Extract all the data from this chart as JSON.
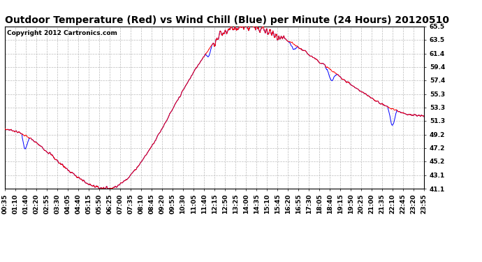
{
  "title": "Outdoor Temperature (Red) vs Wind Chill (Blue) per Minute (24 Hours) 20120510",
  "copyright": "Copyright 2012 Cartronics.com",
  "ylim": [
    41.1,
    65.5
  ],
  "yticks": [
    41.1,
    43.1,
    45.2,
    47.2,
    49.2,
    51.3,
    53.3,
    55.3,
    57.4,
    59.4,
    61.4,
    63.5,
    65.5
  ],
  "xtick_labels": [
    "00:35",
    "01:10",
    "01:40",
    "02:20",
    "02:55",
    "03:30",
    "04:05",
    "04:40",
    "05:15",
    "05:50",
    "06:25",
    "07:00",
    "07:35",
    "08:10",
    "08:45",
    "09:20",
    "09:55",
    "10:30",
    "11:05",
    "11:40",
    "12:15",
    "12:50",
    "13:25",
    "14:00",
    "14:35",
    "15:10",
    "15:45",
    "16:20",
    "16:55",
    "17:30",
    "18:05",
    "18:40",
    "19:15",
    "19:50",
    "20:25",
    "21:00",
    "21:35",
    "22:10",
    "22:45",
    "23:20",
    "23:55"
  ],
  "bg_color": "#ffffff",
  "plot_bg_color": "#ffffff",
  "grid_color": "#bbbbbb",
  "temp_color": "#ff0000",
  "wind_chill_color": "#0000ff",
  "title_fontsize": 10,
  "copyright_fontsize": 6.5,
  "tick_fontsize": 6.5
}
